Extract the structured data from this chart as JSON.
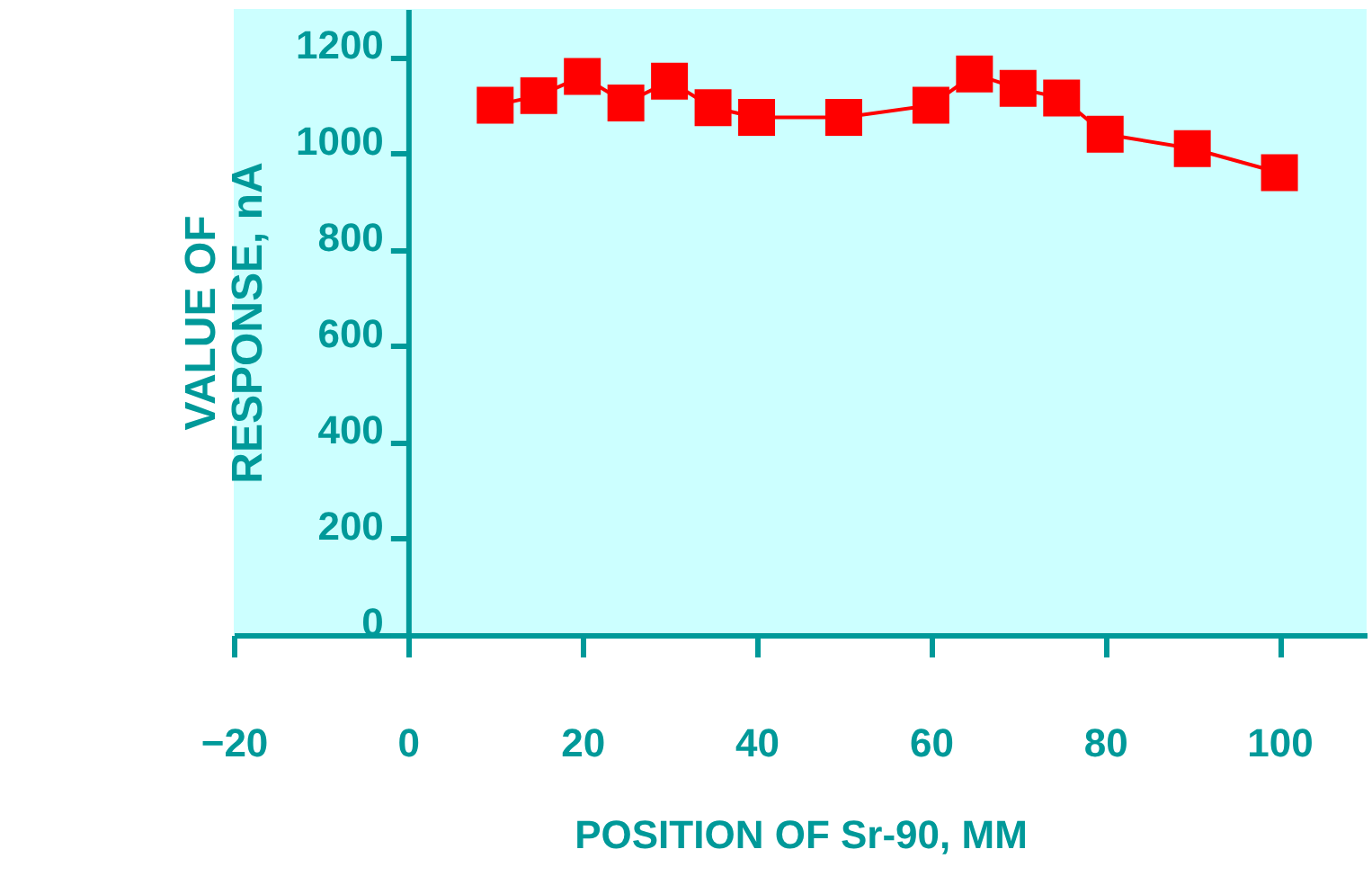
{
  "chart_data": {
    "type": "line",
    "xlabel": "POSITION OF Sr-90, MM",
    "ylabel": "VALUE OF\nRESPONSE, nA",
    "x": [
      10,
      15,
      20,
      25,
      30,
      35,
      40,
      50,
      60,
      65,
      70,
      75,
      80,
      90,
      100
    ],
    "series": [
      {
        "color": "#ff0000",
        "values": [
          1100,
          1120,
          1160,
          1105,
          1150,
          1095,
          1075,
          1075,
          1100,
          1165,
          1135,
          1115,
          1040,
          1010,
          960
        ]
      }
    ],
    "marker": "square",
    "line_style": "solid",
    "xlim": [
      -20,
      110
    ],
    "xticks": [
      -20,
      0,
      20,
      40,
      60,
      80,
      100
    ],
    "ylim": [
      0,
      1300
    ],
    "yticks": [
      0,
      200,
      400,
      600,
      800,
      1000,
      1200
    ],
    "grid": false
  }
}
